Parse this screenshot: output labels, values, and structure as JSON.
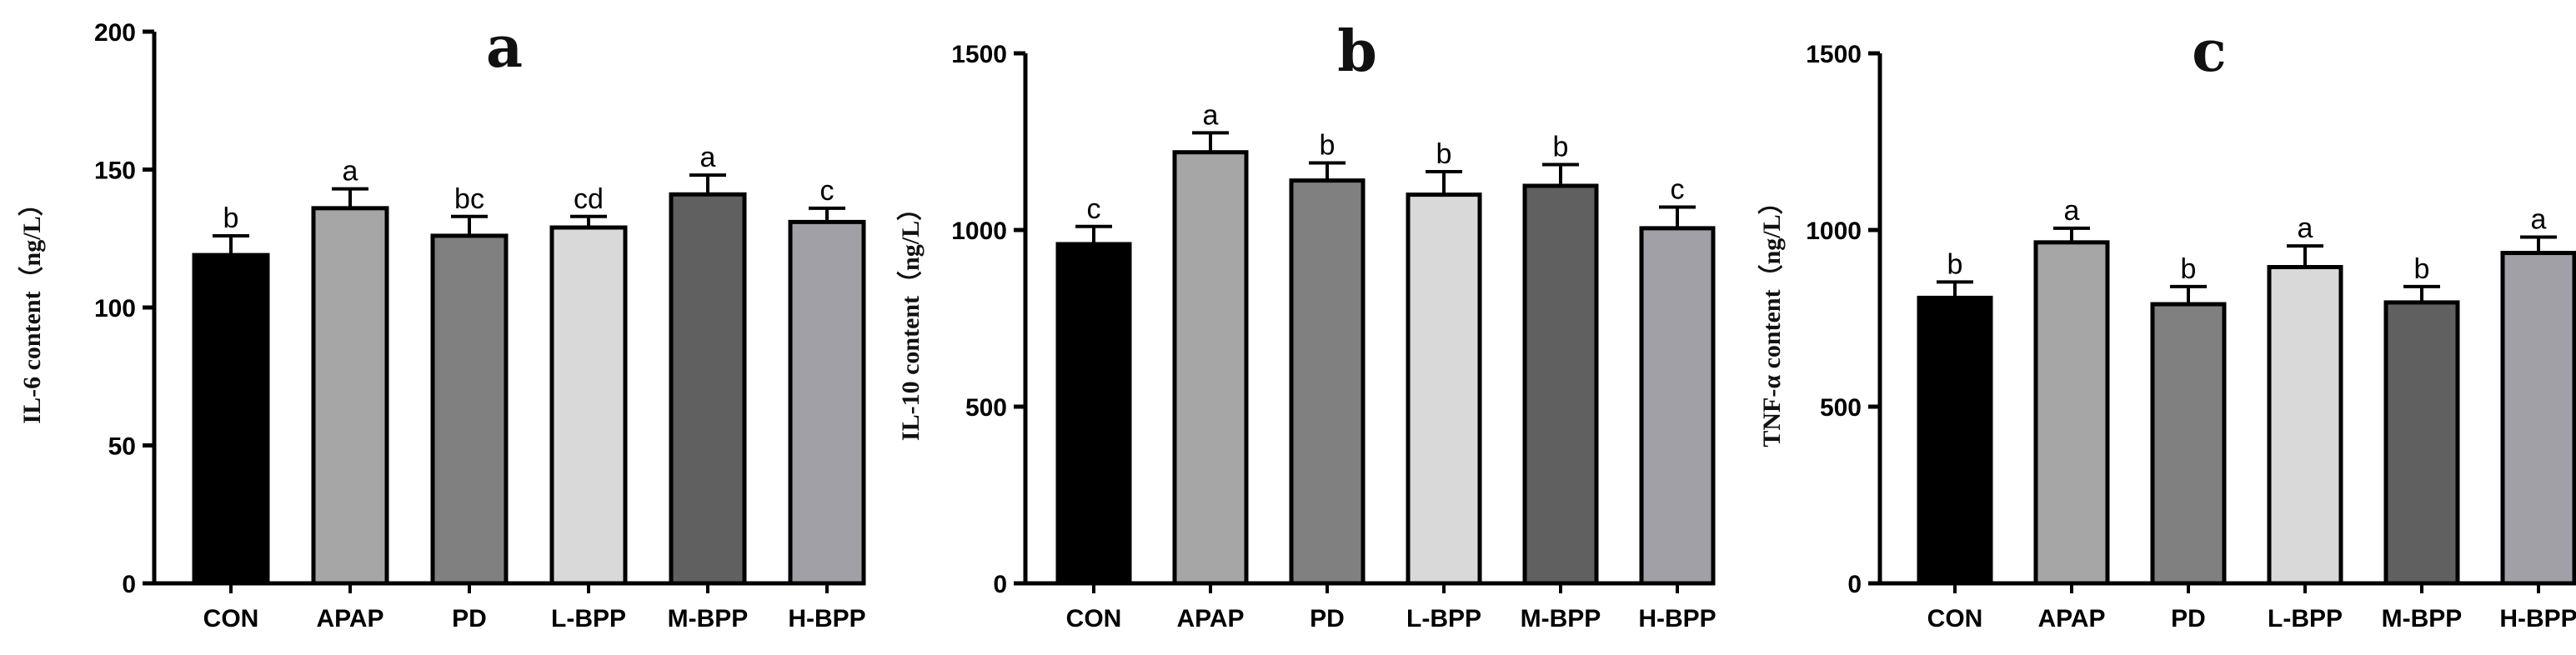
{
  "chart_data": [
    {
      "type": "bar",
      "panel_label": "a",
      "title": "a",
      "xlabel": "",
      "ylabel": "IL-6 content（ng/L）",
      "ylim": [
        0,
        200
      ],
      "yticks": [
        0,
        50,
        100,
        150,
        200
      ],
      "categories": [
        "CON",
        "APAP",
        "PD",
        "L-BPP",
        "M-BPP",
        "H-BPP"
      ],
      "values": [
        119,
        136,
        126,
        129,
        141,
        131
      ],
      "errors": [
        7,
        7,
        7,
        4,
        7,
        5
      ],
      "significance": [
        "b",
        "a",
        "bc",
        "cd",
        "a",
        "c"
      ],
      "bar_colors": [
        "#000000",
        "#a6a6a6",
        "#808080",
        "#d9d9d9",
        "#606060",
        "#a0a0a6"
      ]
    },
    {
      "type": "bar",
      "panel_label": "b",
      "title": "b",
      "xlabel": "",
      "ylabel": "IL-10 content（ng/L）",
      "ylim": [
        0,
        1500
      ],
      "yticks": [
        0,
        500,
        1000,
        1500
      ],
      "categories": [
        "CON",
        "APAP",
        "PD",
        "L-BPP",
        "M-BPP",
        "H-BPP"
      ],
      "values": [
        960,
        1220,
        1140,
        1100,
        1125,
        1005
      ],
      "errors": [
        50,
        55,
        50,
        65,
        60,
        60
      ],
      "significance": [
        "c",
        "a",
        "b",
        "b",
        "b",
        "c"
      ],
      "bar_colors": [
        "#000000",
        "#a6a6a6",
        "#808080",
        "#d9d9d9",
        "#606060",
        "#a0a0a6"
      ]
    },
    {
      "type": "bar",
      "panel_label": "c",
      "title": "c",
      "xlabel": "",
      "ylabel": "TNF-α content（ng/L）",
      "ylim": [
        0,
        1500
      ],
      "yticks": [
        0,
        500,
        1000,
        1500
      ],
      "categories": [
        "CON",
        "APAP",
        "PD",
        "L-BPP",
        "M-BPP",
        "H-BPP"
      ],
      "values": [
        808,
        965,
        790,
        895,
        795,
        935
      ],
      "errors": [
        45,
        40,
        50,
        60,
        45,
        45
      ],
      "significance": [
        "b",
        "a",
        "b",
        "a",
        "b",
        "a"
      ],
      "bar_colors": [
        "#000000",
        "#a6a6a6",
        "#808080",
        "#d9d9d9",
        "#606060",
        "#a0a0a6"
      ]
    }
  ]
}
